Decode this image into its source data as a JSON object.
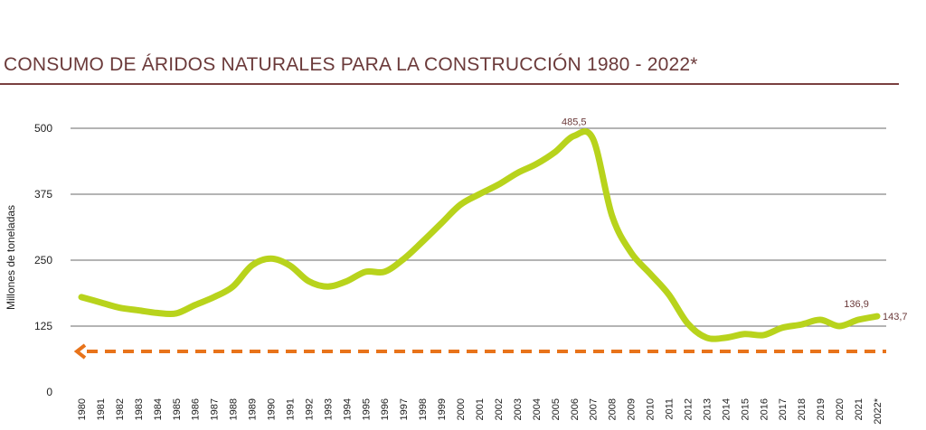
{
  "colors": {
    "title": "#6b3a3a",
    "rule": "#7a3f3f",
    "grid": "#888888",
    "series": "#b8d31c",
    "reference": "#e8731a",
    "annotation": "#6b3a3a"
  },
  "chart_data": {
    "type": "line",
    "title": "CONSUMO DE ÁRIDOS NATURALES PARA LA CONSTRUCCIÓN  1980 - 2022*",
    "ylabel": "Millones de toneladas",
    "xlabel": "",
    "ylim": [
      0,
      500
    ],
    "yticks": [
      0,
      125,
      250,
      375,
      500
    ],
    "grid": true,
    "legend": "none",
    "categories": [
      "1980",
      "1981",
      "1982",
      "1983",
      "1984",
      "1985",
      "1986",
      "1987",
      "1988",
      "1989",
      "1990",
      "1991",
      "1992",
      "1993",
      "1994",
      "1995",
      "1996",
      "1997",
      "1998",
      "1999",
      "2000",
      "2001",
      "2002",
      "2003",
      "2004",
      "2005",
      "2006",
      "2007",
      "2008",
      "2009",
      "2010",
      "2011",
      "2012",
      "2013",
      "2014",
      "2015",
      "2016",
      "2017",
      "2018",
      "2019",
      "2020",
      "2021",
      "2022*"
    ],
    "series": [
      {
        "values": [
          180,
          170,
          160,
          155,
          150,
          149,
          165,
          180,
          200,
          240,
          253,
          240,
          210,
          200,
          210,
          228,
          228,
          252,
          285,
          320,
          355,
          375,
          393,
          415,
          432,
          455,
          485.5,
          480,
          335,
          265,
          225,
          185,
          130,
          103,
          103,
          110,
          108,
          122,
          128,
          137,
          125,
          136.9,
          143.7
        ]
      }
    ],
    "reference_line": {
      "value": 77,
      "style": "dashed"
    },
    "annotations": [
      {
        "category": "2006",
        "value": 485.5,
        "label": "485,5"
      },
      {
        "category": "2021",
        "value": 136.9,
        "label": "136,9"
      },
      {
        "category": "2022*",
        "value": 143.7,
        "label": "143,7"
      }
    ]
  }
}
